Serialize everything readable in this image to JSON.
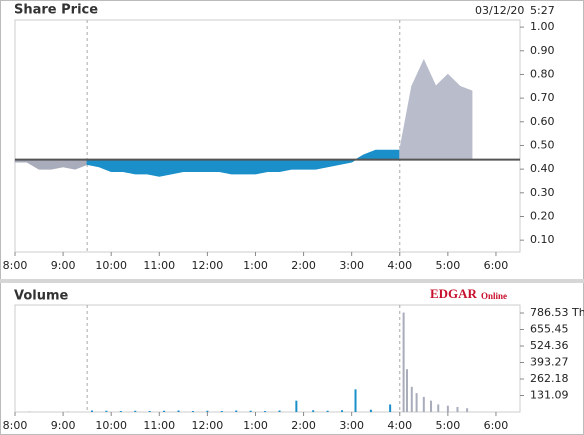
{
  "chart_data": [
    {
      "type": "area",
      "title": "Share Price",
      "date": "03/12/20",
      "time": "5:27",
      "x": [
        8,
        8.25,
        8.5,
        8.75,
        9,
        9.25,
        9.5,
        9.75,
        10,
        10.25,
        10.5,
        10.75,
        11,
        11.25,
        11.5,
        11.75,
        12,
        12.25,
        12.5,
        12.75,
        13,
        13.25,
        13.5,
        13.75,
        14,
        14.25,
        14.5,
        14.75,
        15,
        15.25,
        15.5,
        15.75,
        16,
        16.25,
        16.5,
        16.75,
        17,
        17.25,
        17.5
      ],
      "series": [
        {
          "color": "#a9adbb",
          "values": [
            0.43,
            0.43,
            0.4,
            0.4,
            0.41,
            0.4,
            0.42,
            null,
            null,
            null,
            null,
            null,
            null,
            null,
            null,
            null,
            null,
            null,
            null,
            null,
            null,
            null,
            null,
            null,
            null,
            null,
            null,
            null,
            null,
            null,
            null,
            null,
            null,
            null,
            null,
            null,
            null,
            null,
            null
          ]
        },
        {
          "color": "#1a8fc9",
          "values": [
            null,
            null,
            null,
            null,
            null,
            null,
            0.42,
            0.41,
            0.39,
            0.39,
            0.38,
            0.38,
            0.37,
            0.38,
            0.39,
            0.39,
            0.39,
            0.39,
            0.38,
            0.38,
            0.38,
            0.39,
            0.39,
            0.4,
            0.4,
            0.4,
            0.41,
            0.42,
            0.43,
            0.46,
            0.48,
            0.48,
            0.48,
            null,
            null,
            null,
            null,
            null,
            null
          ]
        },
        {
          "color": "#b9bdcb",
          "values": [
            null,
            null,
            null,
            null,
            null,
            null,
            null,
            null,
            null,
            null,
            null,
            null,
            null,
            null,
            null,
            null,
            null,
            null,
            null,
            null,
            null,
            null,
            null,
            null,
            null,
            null,
            null,
            null,
            null,
            null,
            null,
            null,
            0.48,
            0.75,
            0.86,
            0.75,
            0.8,
            0.75,
            0.73
          ]
        }
      ],
      "reference_line": 0.44,
      "reference_color": "#555555",
      "session_lines": [
        9.5,
        16
      ],
      "xlim": [
        8,
        18.5
      ],
      "xticks": [
        {
          "value": 8,
          "label": "8:00"
        },
        {
          "value": 9,
          "label": "9:00"
        },
        {
          "value": 10,
          "label": "10:00"
        },
        {
          "value": 11,
          "label": "11:00"
        },
        {
          "value": 12,
          "label": "12:00"
        },
        {
          "value": 13,
          "label": "1:00"
        },
        {
          "value": 14,
          "label": "2:00"
        },
        {
          "value": 15,
          "label": "3:00"
        },
        {
          "value": 16,
          "label": "4:00"
        },
        {
          "value": 17,
          "label": "5:00"
        },
        {
          "value": 18,
          "label": "6:00"
        }
      ],
      "ylim": [
        0.05,
        1.03
      ],
      "yticks": [
        {
          "value": 0.1,
          "label": "0.10"
        },
        {
          "value": 0.2,
          "label": "0.20"
        },
        {
          "value": 0.3,
          "label": "0.30"
        },
        {
          "value": 0.4,
          "label": "0.40"
        },
        {
          "value": 0.5,
          "label": "0.50"
        },
        {
          "value": 0.6,
          "label": "0.60"
        },
        {
          "value": 0.7,
          "label": "0.70"
        },
        {
          "value": 0.8,
          "label": "0.80"
        },
        {
          "value": 0.9,
          "label": "0.90"
        },
        {
          "value": 1,
          "label": "1.00"
        }
      ]
    },
    {
      "type": "bar",
      "title": "Volume",
      "logo": {
        "main": "EDGAR",
        "sub": "Online"
      },
      "x": [
        8.3,
        9.1,
        9.6,
        9.9,
        10.2,
        10.5,
        10.8,
        11.1,
        11.4,
        11.7,
        12.0,
        12.3,
        12.6,
        12.9,
        13.2,
        13.5,
        13.85,
        14.2,
        14.5,
        14.8,
        15.08,
        15.4,
        15.8,
        16.08,
        16.15,
        16.25,
        16.35,
        16.5,
        16.65,
        16.8,
        17.0,
        17.2,
        17.4
      ],
      "values": [
        4,
        4,
        12,
        10,
        8,
        10,
        8,
        10,
        12,
        8,
        10,
        8,
        12,
        10,
        8,
        12,
        90,
        14,
        10,
        14,
        180,
        18,
        60,
        790,
        340,
        200,
        150,
        120,
        90,
        60,
        50,
        40,
        30
      ],
      "color": "#1a8fc9",
      "extended_color": "#a9adbb",
      "session_lines": [
        9.5,
        16
      ],
      "xlim": [
        8,
        18.5
      ],
      "xticks": [
        {
          "value": 8,
          "label": "8:00"
        },
        {
          "value": 9,
          "label": "9:00"
        },
        {
          "value": 10,
          "label": "10:00"
        },
        {
          "value": 11,
          "label": "11:00"
        },
        {
          "value": 12,
          "label": "12:00"
        },
        {
          "value": 13,
          "label": "1:00"
        },
        {
          "value": 14,
          "label": "2:00"
        },
        {
          "value": 15,
          "label": "3:00"
        },
        {
          "value": 16,
          "label": "4:00"
        },
        {
          "value": 17,
          "label": "5:00"
        },
        {
          "value": 18,
          "label": "6:00"
        }
      ],
      "ylim": [
        0,
        850
      ],
      "yticks": [
        131.09,
        262.18,
        393.27,
        524.36,
        655.45,
        {
          "value": 786.53,
          "label": "786.53 Th"
        }
      ]
    }
  ]
}
